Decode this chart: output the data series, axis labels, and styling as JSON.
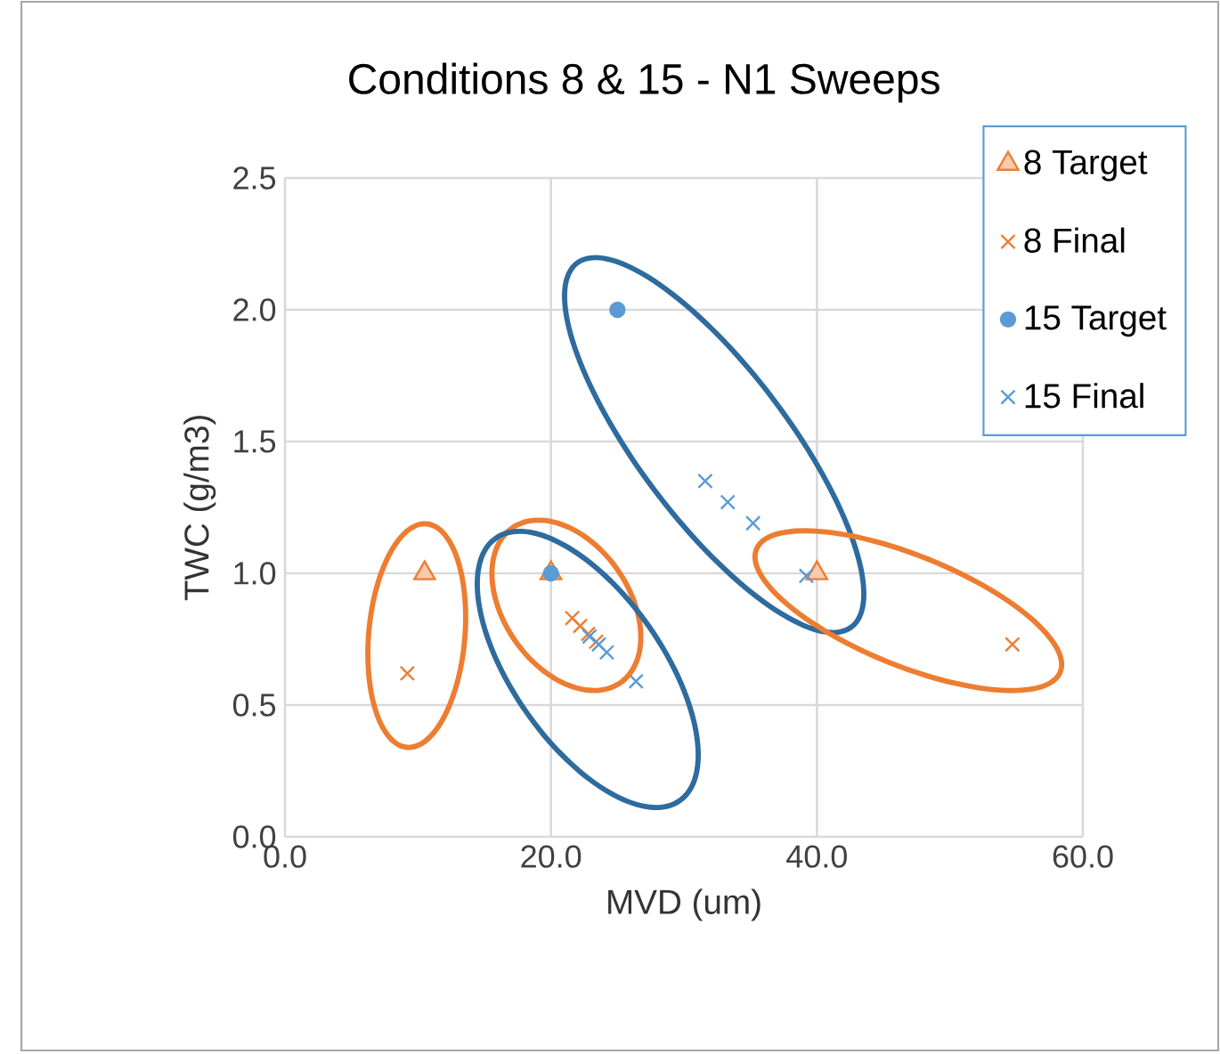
{
  "chart_data": {
    "type": "scatter",
    "title": "Conditions 8 & 15 - N1 Sweeps",
    "xlabel": "MVD (um)",
    "ylabel": "TWC (g/m3)",
    "xlim": [
      0,
      60
    ],
    "ylim": [
      0,
      2.5
    ],
    "xticks": [
      {
        "value": 0,
        "label": "0.0"
      },
      {
        "value": 20,
        "label": "20.0"
      },
      {
        "value": 40,
        "label": "40.0"
      },
      {
        "value": 60,
        "label": "60.0"
      }
    ],
    "yticks": [
      {
        "value": 0,
        "label": "0.0"
      },
      {
        "value": 0.5,
        "label": "0.5"
      },
      {
        "value": 1,
        "label": "1.0"
      },
      {
        "value": 1.5,
        "label": "1.5"
      },
      {
        "value": 2,
        "label": "2.0"
      },
      {
        "value": 2.5,
        "label": "2.5"
      }
    ],
    "grid": true,
    "legend": "top right",
    "series": [
      {
        "name": "8 Target",
        "color": "#ed7d31",
        "marker": "triangle",
        "x": [
          10.5,
          20,
          40
        ],
        "values": [
          1.0,
          1.0,
          1.0
        ]
      },
      {
        "name": "8 Final",
        "color": "#ed7d31",
        "marker": "cross",
        "x": [
          9.2,
          21.6,
          22.2,
          22.8,
          23.4,
          54.7
        ],
        "values": [
          0.62,
          0.83,
          0.8,
          0.77,
          0.74,
          0.73
        ]
      },
      {
        "name": "15 Target",
        "color": "#5b9bd5",
        "marker": "circle",
        "x": [
          20,
          25
        ],
        "values": [
          1.0,
          2.0
        ]
      },
      {
        "name": "15 Final",
        "color": "#5b9bd5",
        "marker": "cross",
        "x": [
          22.9,
          23.6,
          24.2,
          26.4,
          31.6,
          33.3,
          35.2,
          39.2
        ],
        "values": [
          0.76,
          0.73,
          0.7,
          0.59,
          1.35,
          1.27,
          1.19,
          0.99
        ]
      }
    ]
  }
}
